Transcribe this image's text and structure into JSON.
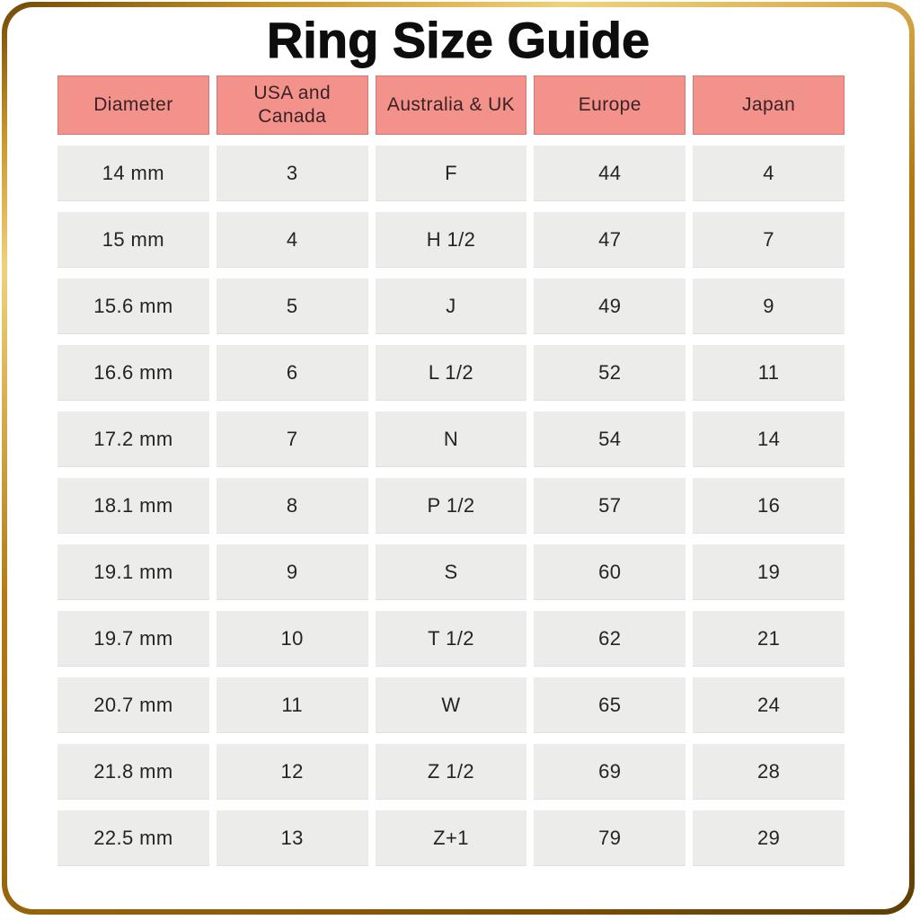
{
  "page": {
    "title": "Ring Size Guide"
  },
  "chart_data": {
    "type": "table",
    "title": "Ring Size Guide",
    "columns": [
      "Diameter",
      "USA and\nCanada",
      "Australia & UK",
      "Europe",
      "Japan"
    ],
    "column_ids": [
      "diameter",
      "usa-canada",
      "australia-uk",
      "europe",
      "japan"
    ],
    "rows": [
      [
        "14 mm",
        "3",
        "F",
        "44",
        "4"
      ],
      [
        "15 mm",
        "4",
        "H 1/2",
        "47",
        "7"
      ],
      [
        "15.6 mm",
        "5",
        "J",
        "49",
        "9"
      ],
      [
        "16.6 mm",
        "6",
        "L 1/2",
        "52",
        "11"
      ],
      [
        "17.2 mm",
        "7",
        "N",
        "54",
        "14"
      ],
      [
        "18.1 mm",
        "8",
        "P 1/2",
        "57",
        "16"
      ],
      [
        "19.1 mm",
        "9",
        "S",
        "60",
        "19"
      ],
      [
        "19.7 mm",
        "10",
        "T 1/2",
        "62",
        "21"
      ],
      [
        "20.7 mm",
        "11",
        "W",
        "65",
        "24"
      ],
      [
        "21.8 mm",
        "12",
        "Z 1/2",
        "69",
        "28"
      ],
      [
        "22.5 mm",
        "13",
        "Z+1",
        "79",
        "29"
      ]
    ]
  },
  "colors": {
    "page_bg": "#ffffff",
    "title_text": "#0d0d0d",
    "header_bg": "#f3928a",
    "header_text": "#3c2226",
    "cell_bg": "#ececeb",
    "cell_text": "#242424",
    "border_gold_dark": "#6f4a05",
    "border_gold_light": "#f0d27a"
  }
}
